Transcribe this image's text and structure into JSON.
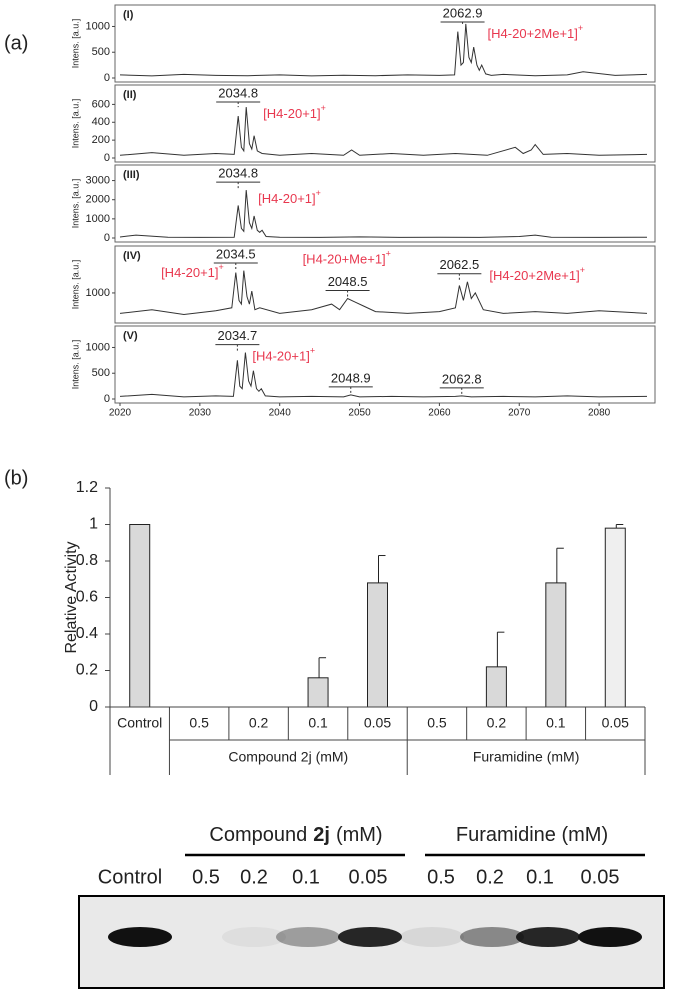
{
  "chart_data": [
    {
      "type": "line",
      "panel_label": "(a)",
      "label": "(I)",
      "ylabel": "Intens. [a.u.]",
      "color": "#333333",
      "xlim": [
        2020,
        2087
      ],
      "ylim": [
        0,
        1300
      ],
      "yticks": [
        0,
        500,
        1000
      ],
      "x": [
        2020,
        2024,
        2028,
        2032,
        2036,
        2040,
        2044,
        2048,
        2052,
        2056,
        2060,
        2061.9,
        2062.3,
        2062.7,
        2063.0,
        2063.3,
        2063.7,
        2064.0,
        2064.3,
        2064.7,
        2065.0,
        2065.3,
        2065.8,
        2066.5,
        2068,
        2072,
        2076,
        2078,
        2082,
        2086
      ],
      "values": [
        60,
        40,
        70,
        50,
        45,
        60,
        40,
        55,
        45,
        60,
        50,
        60,
        900,
        250,
        300,
        1050,
        400,
        300,
        600,
        250,
        150,
        250,
        80,
        50,
        70,
        45,
        60,
        120,
        50,
        70
      ],
      "peak_labels": [
        2062.9
      ],
      "ions": [
        {
          "text": "[H4-20+2Me+1]",
          "sup": "+"
        }
      ]
    },
    {
      "type": "line",
      "label": "(II)",
      "ylabel": "Intens. [a.u.]",
      "color": "#333333",
      "xlim": [
        2020,
        2087
      ],
      "ylim": [
        0,
        750
      ],
      "yticks": [
        0,
        200,
        400,
        600
      ],
      "x": [
        2020,
        2024,
        2028,
        2032,
        2034.3,
        2034.8,
        2035.2,
        2035.5,
        2035.8,
        2036.2,
        2036.5,
        2036.8,
        2037.2,
        2037.8,
        2040,
        2044,
        2048,
        2049,
        2050,
        2054,
        2058,
        2062,
        2066,
        2069.5,
        2070.5,
        2071.5,
        2072,
        2073,
        2076,
        2080,
        2086
      ],
      "values": [
        30,
        60,
        30,
        50,
        40,
        470,
        120,
        80,
        570,
        160,
        100,
        250,
        80,
        50,
        30,
        50,
        30,
        90,
        30,
        50,
        30,
        50,
        30,
        120,
        50,
        90,
        150,
        40,
        50,
        30,
        40
      ],
      "peak_labels": [
        2034.8
      ],
      "ions": [
        {
          "text": "[H4-20+1]",
          "sup": "+"
        }
      ]
    },
    {
      "type": "line",
      "label": "(III)",
      "ylabel": "Intens. [a.u.]",
      "color": "#333333",
      "xlim": [
        2020,
        2087
      ],
      "ylim": [
        0,
        3500
      ],
      "yticks": [
        0,
        1000,
        2000,
        3000
      ],
      "x": [
        2020,
        2022,
        2026,
        2030,
        2034.3,
        2034.8,
        2035.2,
        2035.5,
        2035.8,
        2036.2,
        2036.5,
        2036.8,
        2037.2,
        2037.5,
        2037.8,
        2038.3,
        2040,
        2045,
        2050,
        2055,
        2060,
        2065,
        2070,
        2072,
        2074,
        2080,
        2086
      ],
      "values": [
        50,
        150,
        40,
        30,
        40,
        1700,
        500,
        350,
        2500,
        800,
        500,
        1150,
        400,
        300,
        400,
        80,
        40,
        30,
        60,
        30,
        40,
        30,
        80,
        150,
        40,
        30,
        40
      ],
      "peak_labels": [
        2034.8
      ],
      "ions": [
        {
          "text": "[H4-20+1]",
          "sup": "+"
        }
      ]
    },
    {
      "type": "line",
      "label": "(IV)",
      "ylabel": "Intens. [a.u.]",
      "color": "#333333",
      "xlim": [
        2020,
        2087
      ],
      "ylim": [
        300,
        2100
      ],
      "yticks": [
        1000
      ],
      "x": [
        2020,
        2024,
        2028,
        2032,
        2034.0,
        2034.5,
        2034.9,
        2035.2,
        2035.5,
        2035.9,
        2036.2,
        2036.5,
        2036.9,
        2037.5,
        2040,
        2044,
        2046.5,
        2047.5,
        2048.5,
        2049.5,
        2050.5,
        2052,
        2056,
        2060,
        2062.0,
        2062.5,
        2063.0,
        2063.5,
        2064.0,
        2064.5,
        2065.5,
        2068,
        2072,
        2076,
        2080,
        2086
      ],
      "values": [
        450,
        550,
        420,
        520,
        600,
        1550,
        800,
        700,
        1600,
        900,
        700,
        1050,
        550,
        600,
        450,
        550,
        700,
        550,
        850,
        750,
        650,
        500,
        450,
        500,
        600,
        1200,
        800,
        1300,
        850,
        1000,
        550,
        450,
        500,
        450,
        520,
        450
      ],
      "peak_labels": [
        2034.5,
        2048.5,
        2062.5
      ],
      "ions": [
        {
          "text": "[H4-20+1]",
          "sup": "+"
        },
        {
          "text": "[H4-20+Me+1]",
          "sup": "+"
        },
        {
          "text": "[H4-20+2Me+1]",
          "sup": "+"
        }
      ]
    },
    {
      "type": "line",
      "label": "(V)",
      "ylabel": "Intens. [a.u.]",
      "color": "#333333",
      "xlim": [
        2020,
        2087
      ],
      "ylim": [
        0,
        1300
      ],
      "yticks": [
        0,
        500,
        1000
      ],
      "xticks": [
        2020,
        2030,
        2040,
        2050,
        2060,
        2070,
        2080
      ],
      "x": [
        2020,
        2024,
        2028,
        2032,
        2034.2,
        2034.7,
        2035.0,
        2035.3,
        2035.7,
        2036.1,
        2036.4,
        2036.7,
        2037.1,
        2037.4,
        2037.7,
        2038.2,
        2040,
        2044,
        2048,
        2048.9,
        2050,
        2054,
        2058,
        2062,
        2062.8,
        2064,
        2068,
        2072,
        2076,
        2080,
        2086
      ],
      "values": [
        50,
        90,
        40,
        60,
        50,
        750,
        250,
        200,
        900,
        350,
        250,
        550,
        200,
        150,
        200,
        60,
        40,
        50,
        40,
        80,
        40,
        50,
        40,
        50,
        60,
        40,
        50,
        40,
        60,
        40,
        50
      ],
      "peak_labels": [
        2034.7,
        2048.9,
        2062.8
      ],
      "ions": [
        {
          "text": "[H4-20+1]",
          "sup": "+"
        }
      ]
    },
    {
      "type": "bar",
      "panel_label": "(b)",
      "ylabel": "Relative Activity",
      "color": "#d9d9d9",
      "categories": [
        "Control",
        "0.5",
        "0.2",
        "0.1",
        "0.05",
        "0.5",
        "0.2",
        "0.1",
        "0.05"
      ],
      "group_labels": [
        "Compound 2j (mM)",
        "Furamidine (mM)"
      ],
      "values": [
        1,
        0,
        0,
        0.16,
        0.68,
        0,
        0.22,
        0.68,
        0.98
      ],
      "errors": [
        0,
        0,
        0,
        0.11,
        0.15,
        0,
        0.19,
        0.19,
        0.02
      ],
      "ylim": [
        0,
        1.2
      ],
      "yticks": [
        0,
        0.2,
        0.4,
        0.6,
        0.8,
        1,
        1.2
      ]
    },
    {
      "type": "gel",
      "color": "#111111",
      "lane_labels": [
        "Control",
        "0.5",
        "0.2",
        "0.1",
        "0.05",
        "0.5",
        "0.2",
        "0.1",
        "0.05"
      ],
      "group_labels": [
        [
          "Compound",
          "2j",
          "(mM)"
        ],
        [
          "Furamidine (mM)"
        ]
      ],
      "values": [
        1,
        0,
        0.05,
        0.35,
        0.9,
        0.08,
        0.45,
        0.9,
        1
      ]
    }
  ]
}
